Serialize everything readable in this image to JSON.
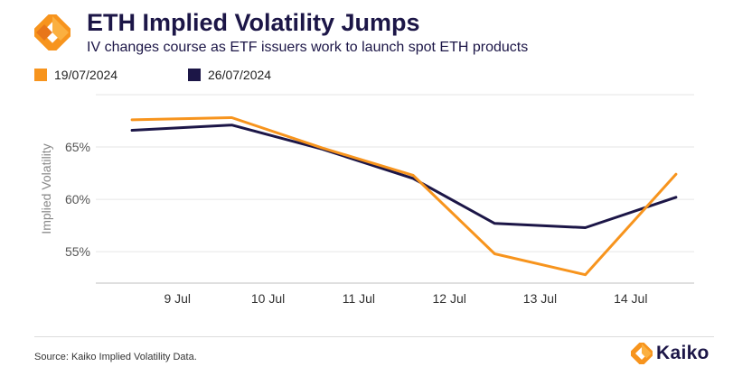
{
  "header": {
    "title": "ETH Implied Volatility Jumps",
    "subtitle": "IV changes course as ETF issuers work to launch spot ETH products"
  },
  "footer": {
    "source": "Source: Kaiko Implied Volatility Data.",
    "brand": "Kaiko"
  },
  "colors": {
    "orange": "#F7941D",
    "navy": "#1C1647"
  },
  "chart_data": {
    "type": "line",
    "ylabel": "Implied Volatility",
    "xlabel": "",
    "x_tick_labels": [
      "9 Jul",
      "10 Jul",
      "11 Jul",
      "12 Jul",
      "13 Jul",
      "14 Jul"
    ],
    "y_ticks": [
      55,
      60,
      65
    ],
    "y_tick_labels": [
      "55%",
      "60%",
      "65%"
    ],
    "ylim": [
      52,
      70
    ],
    "grid": "horizontal",
    "legend_position": "top-left",
    "x": [
      8.5,
      9.6,
      10.6,
      11.6,
      12.5,
      13.5,
      14.5
    ],
    "series": [
      {
        "name": "19/07/2024",
        "color": "#F7941D",
        "values": [
          67.6,
          67.8,
          64.9,
          62.3,
          54.8,
          52.8,
          62.4
        ]
      },
      {
        "name": "26/07/2024",
        "color": "#1C1647",
        "values": [
          66.6,
          67.1,
          64.8,
          62.0,
          57.7,
          57.3,
          60.2
        ]
      }
    ]
  }
}
